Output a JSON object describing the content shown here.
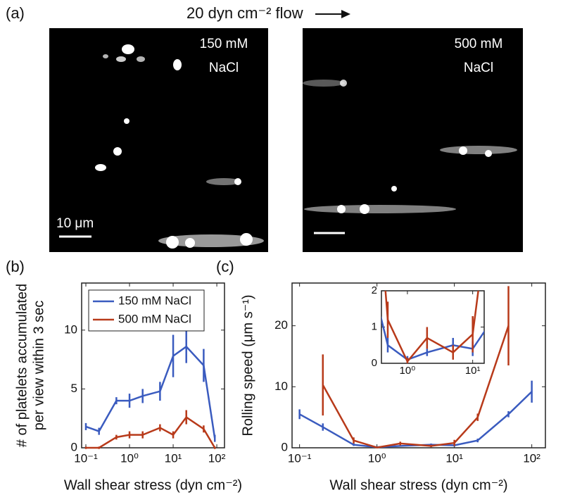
{
  "panel_a": {
    "label": "(a)",
    "flow": "20 dyn cm⁻² flow",
    "left_image": "150 mM NaCl",
    "left_line1": "150 mM",
    "left_line2": "NaCl",
    "right_line1": "500 mM",
    "right_line2": "NaCl",
    "scale": "10 μm"
  },
  "chart_data": [
    {
      "type": "line",
      "panel_label": "(b)",
      "x_label": "Wall shear stress (dyn cm⁻²)",
      "y_label": [
        "# of platelets accumulated",
        "per view within 3 sec"
      ],
      "log_x": true,
      "xlim": [
        0.08,
        150
      ],
      "ylim": [
        0,
        14
      ],
      "xticks": [
        {
          "value": 0.1,
          "label": "10⁻¹"
        },
        {
          "value": 1,
          "label": "10⁰"
        },
        {
          "value": 10,
          "label": "10¹"
        },
        {
          "value": 100,
          "label": "10²"
        }
      ],
      "yticks": [
        0,
        5,
        10
      ],
      "legend": "upper left",
      "x": [
        0.1,
        0.2,
        0.5,
        1,
        2,
        5,
        10,
        20,
        50,
        90
      ],
      "series": [
        {
          "name": "150 mM NaCl",
          "color": "#3a5bbf",
          "values": [
            1.8,
            1.4,
            4.0,
            4.0,
            4.4,
            4.8,
            7.8,
            8.6,
            7.0,
            0.8
          ],
          "errors": [
            0.3,
            0.3,
            0.3,
            0.6,
            0.6,
            0.8,
            1.8,
            1.4,
            1.4,
            0.3
          ]
        },
        {
          "name": "500 mM NaCl",
          "color": "#b83a1a",
          "values": [
            0,
            0,
            0.9,
            1.1,
            1.1,
            1.7,
            1.1,
            2.6,
            1.6,
            0
          ],
          "errors": [
            0.1,
            0.1,
            0.2,
            0.3,
            0.3,
            0.3,
            0.3,
            0.6,
            0.3,
            0.1
          ]
        }
      ]
    },
    {
      "type": "line",
      "panel_label": "(c)",
      "x_label": "Wall shear stress (dyn cm⁻²)",
      "y_label": [
        "Rolling speed (μm s⁻¹)"
      ],
      "log_x": true,
      "xlim": [
        0.08,
        150
      ],
      "ylim": [
        0,
        27
      ],
      "xticks": [
        {
          "value": 0.1,
          "label": "10⁻¹"
        },
        {
          "value": 1,
          "label": "10⁰"
        },
        {
          "value": 10,
          "label": "10¹"
        },
        {
          "value": 100,
          "label": "10²"
        }
      ],
      "yticks": [
        0,
        10,
        20
      ],
      "x": [
        0.1,
        0.2,
        0.5,
        1,
        2,
        5,
        10,
        20,
        50,
        100
      ],
      "series": [
        {
          "name": "150 mM NaCl",
          "color": "#3a5bbf",
          "values": [
            5.5,
            3.4,
            0.5,
            0.1,
            0.3,
            0.5,
            0.4,
            1.2,
            5.5,
            9.2
          ],
          "errors": [
            0.8,
            0.6,
            0.2,
            0.1,
            0.1,
            0.2,
            0.2,
            0.3,
            0.5,
            1.8
          ]
        },
        {
          "name": "500 mM NaCl",
          "color": "#b83a1a",
          "values": [
            null,
            10.3,
            1.2,
            0.05,
            0.7,
            0.3,
            0.8,
            5,
            20,
            null
          ],
          "errors": [
            null,
            5,
            0.5,
            0.1,
            0.3,
            0.2,
            0.5,
            0.6,
            6.5,
            null
          ]
        }
      ],
      "inset": {
        "xlim": [
          0.4,
          15
        ],
        "ylim": [
          0,
          2
        ],
        "yticks": [
          0,
          1,
          2
        ],
        "xticks": [
          {
            "value": 1,
            "label": "10⁰"
          },
          {
            "value": 10,
            "label": "10¹"
          }
        ]
      }
    }
  ]
}
